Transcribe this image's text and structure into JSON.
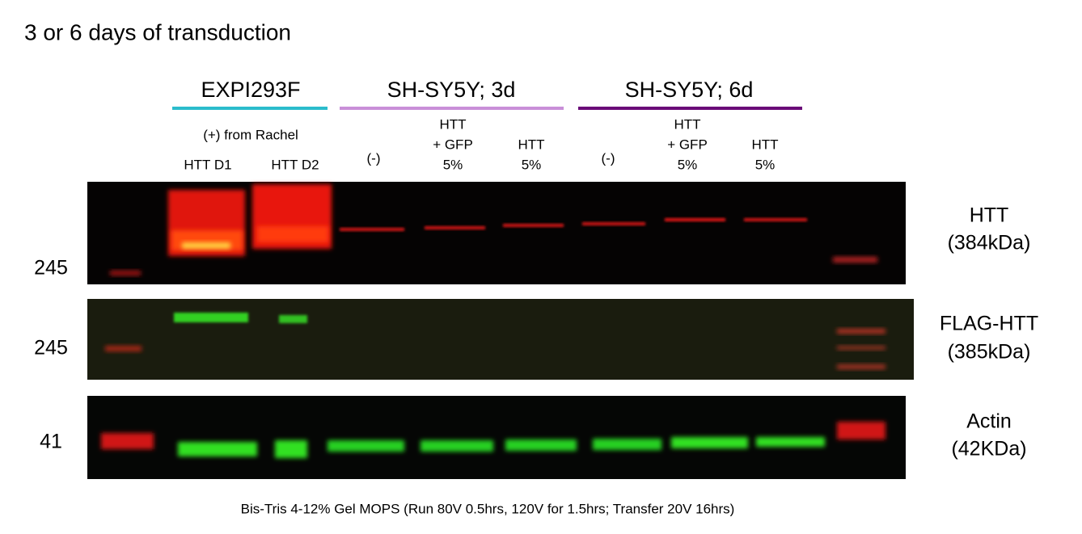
{
  "title": "3 or 6 days of transduction",
  "groups": [
    {
      "label": "EXPI293F",
      "note": "(+) from Rachel"
    },
    {
      "label": "SH-SY5Y; 3d"
    },
    {
      "label": "SH-SY5Y; 6d"
    }
  ],
  "lanes": [
    [
      "HTT D1"
    ],
    [
      "HTT D2"
    ],
    [
      "(-)"
    ],
    [
      "HTT",
      "+ GFP",
      "5%"
    ],
    [
      "HTT",
      "5%"
    ],
    [
      "(-)"
    ],
    [
      "HTT",
      "+ GFP",
      "5%"
    ],
    [
      "HTT",
      "5%"
    ]
  ],
  "blots": [
    {
      "marker": "245",
      "label": [
        "HTT",
        "(384kDa)"
      ]
    },
    {
      "marker": "245",
      "label": [
        "FLAG-HTT",
        "(385kDa)"
      ]
    },
    {
      "marker": "41",
      "label": [
        "Actin",
        "(42KDa)"
      ]
    }
  ],
  "footnote": "Bis-Tris 4-12% Gel MOPS (Run 80V 0.5hrs, 120V for 1.5hrs; Transfer 20V 16hrs)"
}
